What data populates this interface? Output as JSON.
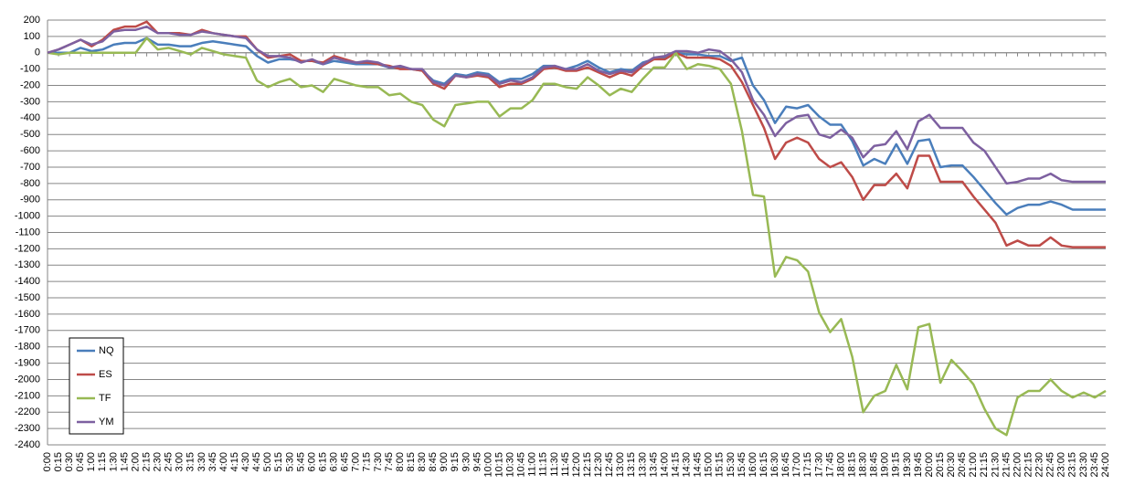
{
  "chart_data": {
    "type": "line",
    "categories": [
      "0:00",
      "0:15",
      "0:30",
      "0:45",
      "1:00",
      "1:15",
      "1:30",
      "1:45",
      "2:00",
      "2:15",
      "2:30",
      "2:45",
      "3:00",
      "3:15",
      "3:30",
      "3:45",
      "4:00",
      "4:15",
      "4:30",
      "4:45",
      "5:00",
      "5:15",
      "5:30",
      "5:45",
      "6:00",
      "6:15",
      "6:30",
      "6:45",
      "7:00",
      "7:15",
      "7:30",
      "7:45",
      "8:00",
      "8:15",
      "8:30",
      "8:45",
      "9:00",
      "9:15",
      "9:30",
      "9:45",
      "10:00",
      "10:15",
      "10:30",
      "10:45",
      "11:00",
      "11:15",
      "11:30",
      "11:45",
      "12:00",
      "12:15",
      "12:30",
      "12:45",
      "13:00",
      "13:15",
      "13:30",
      "13:45",
      "14:00",
      "14:15",
      "14:30",
      "14:45",
      "15:00",
      "15:15",
      "15:30",
      "15:45",
      "16:00",
      "16:15",
      "16:30",
      "16:45",
      "17:00",
      "17:15",
      "17:30",
      "17:45",
      "18:00",
      "18:15",
      "18:30",
      "18:45",
      "19:00",
      "19:15",
      "19:30",
      "19:45",
      "20:00",
      "20:15",
      "20:30",
      "20:45",
      "21:00",
      "21:15",
      "21:30",
      "21:45",
      "22:00",
      "22:15",
      "22:30",
      "22:45",
      "23:00",
      "23:15",
      "23:30",
      "23:45",
      "24:00"
    ],
    "series": [
      {
        "name": "NQ",
        "color": "#4a7ebb",
        "values": [
          0,
          0,
          0,
          30,
          10,
          20,
          50,
          60,
          60,
          90,
          50,
          50,
          40,
          40,
          60,
          70,
          60,
          50,
          40,
          -20,
          -60,
          -40,
          -40,
          -50,
          -50,
          -70,
          -50,
          -60,
          -70,
          -70,
          -70,
          -90,
          -90,
          -100,
          -110,
          -170,
          -190,
          -130,
          -140,
          -120,
          -130,
          -180,
          -160,
          -160,
          -130,
          -80,
          -80,
          -100,
          -80,
          -50,
          -90,
          -120,
          -100,
          -110,
          -60,
          -40,
          -30,
          0,
          -10,
          -10,
          -20,
          -20,
          -50,
          -30,
          -200,
          -290,
          -430,
          -330,
          -340,
          -320,
          -390,
          -440,
          -440,
          -540,
          -690,
          -650,
          -680,
          -560,
          -680,
          -540,
          -530,
          -700,
          -690,
          -690,
          -760,
          -840,
          -920,
          -990,
          -950,
          -930,
          -930,
          -910,
          -930,
          -960,
          -960,
          -960,
          -960
        ]
      },
      {
        "name": "ES",
        "color": "#be4b48",
        "values": [
          0,
          20,
          50,
          80,
          40,
          80,
          140,
          160,
          160,
          190,
          120,
          120,
          120,
          110,
          140,
          120,
          110,
          100,
          100,
          20,
          -30,
          -20,
          -10,
          -50,
          -50,
          -60,
          -20,
          -40,
          -60,
          -60,
          -70,
          -80,
          -100,
          -100,
          -110,
          -190,
          -220,
          -140,
          -150,
          -140,
          -150,
          -210,
          -190,
          -190,
          -160,
          -100,
          -90,
          -110,
          -110,
          -90,
          -120,
          -150,
          -120,
          -140,
          -80,
          -40,
          -40,
          0,
          -30,
          -30,
          -30,
          -40,
          -80,
          -180,
          -320,
          -460,
          -650,
          -550,
          -520,
          -550,
          -650,
          -700,
          -670,
          -760,
          -900,
          -810,
          -810,
          -740,
          -830,
          -630,
          -630,
          -790,
          -790,
          -790,
          -880,
          -960,
          -1040,
          -1180,
          -1150,
          -1180,
          -1180,
          -1130,
          -1180,
          -1190,
          -1190,
          -1190,
          -1190
        ]
      },
      {
        "name": "TF",
        "color": "#98b954",
        "values": [
          0,
          -10,
          0,
          0,
          0,
          0,
          0,
          0,
          0,
          90,
          20,
          30,
          10,
          -10,
          30,
          10,
          -10,
          -20,
          -30,
          -170,
          -210,
          -180,
          -160,
          -210,
          -200,
          -240,
          -160,
          -180,
          -200,
          -210,
          -210,
          -260,
          -250,
          -300,
          -320,
          -410,
          -450,
          -320,
          -310,
          -300,
          -300,
          -390,
          -340,
          -340,
          -290,
          -190,
          -190,
          -210,
          -220,
          -150,
          -200,
          -260,
          -220,
          -240,
          -160,
          -90,
          -90,
          0,
          -100,
          -70,
          -80,
          -100,
          -190,
          -480,
          -870,
          -880,
          -1370,
          -1250,
          -1270,
          -1340,
          -1590,
          -1710,
          -1630,
          -1860,
          -2200,
          -2100,
          -2070,
          -1910,
          -2060,
          -1680,
          -1660,
          -2020,
          -1880,
          -1950,
          -2030,
          -2180,
          -2300,
          -2340,
          -2110,
          -2070,
          -2070,
          -2000,
          -2070,
          -2110,
          -2080,
          -2110,
          -2070
        ]
      },
      {
        "name": "YM",
        "color": "#7d60a0",
        "values": [
          0,
          20,
          50,
          80,
          50,
          70,
          130,
          140,
          140,
          160,
          120,
          120,
          110,
          110,
          130,
          120,
          110,
          100,
          90,
          20,
          -20,
          -20,
          -30,
          -60,
          -40,
          -70,
          -30,
          -50,
          -60,
          -50,
          -60,
          -90,
          -80,
          -100,
          -100,
          -180,
          -200,
          -140,
          -150,
          -130,
          -140,
          -190,
          -170,
          -180,
          -150,
          -90,
          -80,
          -100,
          -100,
          -70,
          -110,
          -130,
          -110,
          -120,
          -70,
          -30,
          -20,
          10,
          10,
          0,
          20,
          10,
          -40,
          -120,
          -290,
          -380,
          -510,
          -430,
          -390,
          -380,
          -500,
          -520,
          -470,
          -520,
          -640,
          -570,
          -560,
          -480,
          -590,
          -420,
          -380,
          -460,
          -460,
          -460,
          -550,
          -600,
          -700,
          -800,
          -790,
          -770,
          -770,
          -740,
          -780,
          -790,
          -790,
          -790,
          -790
        ]
      }
    ],
    "ylim": [
      -2400,
      200
    ],
    "yticks": [
      200,
      100,
      0,
      -100,
      -200,
      -300,
      -400,
      -500,
      -600,
      -700,
      -800,
      -900,
      -1000,
      -1100,
      -1200,
      -1300,
      -1400,
      -1500,
      -1600,
      -1700,
      -1800,
      -1900,
      -2000,
      -2100,
      -2200,
      -2300,
      -2400
    ],
    "grid": true,
    "legend": "lower left"
  }
}
